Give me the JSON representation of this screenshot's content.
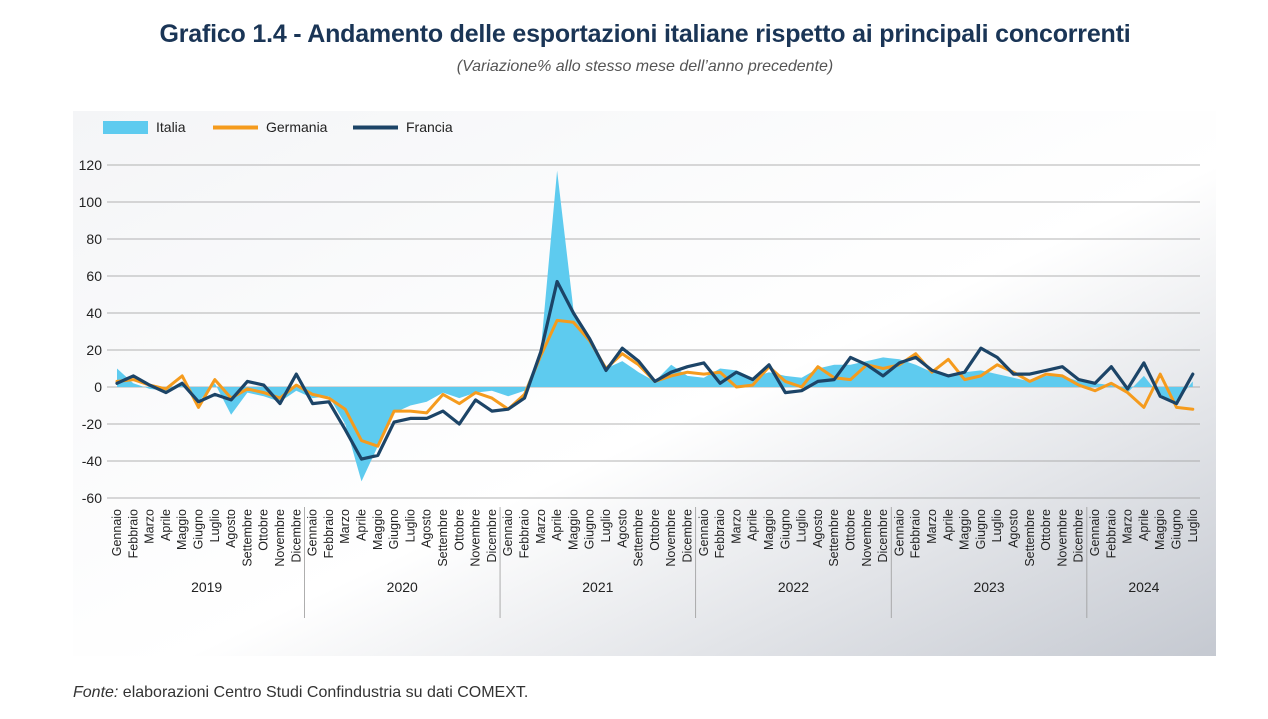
{
  "header": {
    "title": "Grafico 1.4 - Andamento delle esportazioni italiane rispetto ai principali concorrenti",
    "subtitle": "(Variazione% allo stesso mese dell’anno precedente)"
  },
  "footer": {
    "source_label": "Fonte:",
    "source_text": " elaborazioni Centro Studi Confindustria su dati COMEXT."
  },
  "colors": {
    "italia": "#5ecbef",
    "germania": "#f59b1d",
    "francia": "#1c4467",
    "grid": "#9a9a9a",
    "text": "#222222"
  },
  "chart_data": {
    "type": "line",
    "title": "Grafico 1.4 - Andamento delle esportazioni italiane rispetto ai principali concorrenti",
    "subtitle": "(Variazione% allo stesso mese dell’anno precedente)",
    "ylim": [
      -60,
      120
    ],
    "yticks": [
      120,
      100,
      80,
      60,
      40,
      20,
      0,
      -20,
      -40,
      -60
    ],
    "grid": true,
    "legend_position": "top-left",
    "month_labels": [
      "Gennaio",
      "Febbraio",
      "Marzo",
      "Aprile",
      "Maggio",
      "Giugno",
      "Luglio",
      "Agosto",
      "Settembre",
      "Ottobre",
      "Novembre",
      "Dicembre"
    ],
    "years": [
      "2019",
      "2020",
      "2021",
      "2022",
      "2023",
      "2024"
    ],
    "x": [
      "Gennaio 2019",
      "Febbraio 2019",
      "Marzo 2019",
      "Aprile 2019",
      "Maggio 2019",
      "Giugno 2019",
      "Luglio 2019",
      "Agosto 2019",
      "Settembre 2019",
      "Ottobre 2019",
      "Novembre 2019",
      "Dicembre 2019",
      "Gennaio 2020",
      "Febbraio 2020",
      "Marzo 2020",
      "Aprile 2020",
      "Maggio 2020",
      "Giugno 2020",
      "Luglio 2020",
      "Agosto 2020",
      "Settembre 2020",
      "Ottobre 2020",
      "Novembre 2020",
      "Dicembre 2020",
      "Gennaio 2021",
      "Febbraio 2021",
      "Marzo 2021",
      "Aprile 2021",
      "Maggio 2021",
      "Giugno 2021",
      "Luglio 2021",
      "Agosto 2021",
      "Settembre 2021",
      "Ottobre 2021",
      "Novembre 2021",
      "Dicembre 2021",
      "Gennaio 2022",
      "Febbraio 2022",
      "Marzo 2022",
      "Aprile 2022",
      "Maggio 2022",
      "Giugno 2022",
      "Luglio 2022",
      "Agosto 2022",
      "Settembre 2022",
      "Ottobre 2022",
      "Novembre 2022",
      "Dicembre 2022",
      "Gennaio 2023",
      "Febbraio 2023",
      "Marzo 2023",
      "Aprile 2023",
      "Maggio 2023",
      "Giugno 2023",
      "Luglio 2023",
      "Agosto 2023",
      "Settembre 2023",
      "Ottobre 2023",
      "Novembre 2023",
      "Dicembre 2023",
      "Gennaio 2024",
      "Febbraio 2024",
      "Marzo 2024",
      "Aprile 2024",
      "Maggio 2024",
      "Giugno 2024",
      "Luglio 2024"
    ],
    "series": [
      {
        "name": "Italia",
        "type": "area",
        "color": "#5ecbef",
        "values": [
          10,
          2,
          -1,
          -2,
          3,
          -8,
          2,
          -15,
          -3,
          -5,
          -8,
          -2,
          -6,
          -5,
          -20,
          -51,
          -32,
          -14,
          -10,
          -8,
          -3,
          -6,
          -3,
          -2,
          -5,
          -2,
          20,
          117,
          42,
          25,
          10,
          14,
          8,
          3,
          12,
          6,
          5,
          10,
          9,
          5,
          8,
          6,
          5,
          10,
          12,
          12,
          14,
          16,
          15,
          12,
          8,
          6,
          8,
          9,
          7,
          5,
          3,
          6,
          6,
          3,
          2,
          1,
          -3,
          6,
          -5,
          -8,
          3
        ]
      },
      {
        "name": "Germania",
        "type": "line",
        "color": "#f59b1d",
        "values": [
          3,
          4,
          1,
          -1,
          6,
          -11,
          4,
          -6,
          -1,
          -3,
          -6,
          1,
          -4,
          -6,
          -12,
          -29,
          -32,
          -13,
          -13,
          -14,
          -4,
          -9,
          -3,
          -6,
          -12,
          -4,
          17,
          36,
          35,
          25,
          10,
          18,
          12,
          3,
          6,
          8,
          7,
          8,
          0,
          1,
          11,
          3,
          0,
          11,
          5,
          4,
          12,
          10,
          12,
          18,
          8,
          15,
          4,
          6,
          12,
          8,
          3,
          7,
          6,
          1,
          -2,
          2,
          -3,
          -11,
          7,
          -11,
          -12
        ]
      },
      {
        "name": "Francia",
        "type": "line",
        "color": "#1c4467",
        "values": [
          2,
          6,
          1,
          -3,
          2,
          -8,
          -4,
          -7,
          3,
          1,
          -9,
          7,
          -9,
          -8,
          -23,
          -39,
          -37,
          -19,
          -17,
          -17,
          -13,
          -20,
          -7,
          -13,
          -12,
          -6,
          19,
          57,
          40,
          26,
          9,
          21,
          14,
          3,
          8,
          11,
          13,
          2,
          8,
          4,
          12,
          -3,
          -2,
          3,
          4,
          16,
          12,
          6,
          13,
          16,
          9,
          6,
          8,
          21,
          16,
          7,
          7,
          9,
          11,
          4,
          2,
          11,
          -1,
          13,
          -5,
          -9,
          7
        ]
      }
    ]
  }
}
